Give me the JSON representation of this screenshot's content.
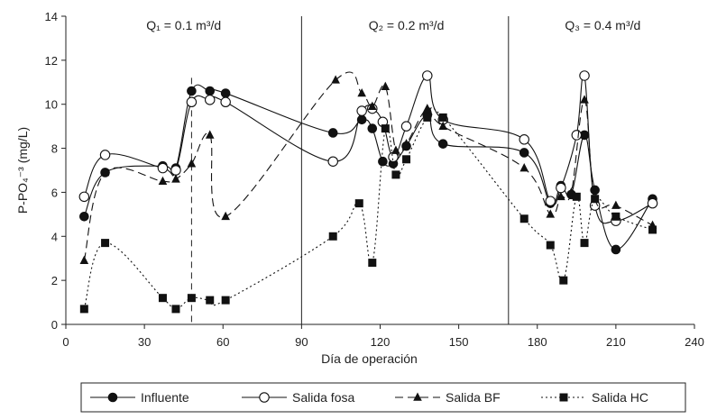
{
  "chart_data": {
    "type": "line",
    "xlabel": "Día de operación",
    "ylabel": "P-PO₄⁻³ (mg/L)",
    "xlim": [
      0,
      240
    ],
    "ylim": [
      0,
      14
    ],
    "xticks": [
      0,
      30,
      60,
      90,
      120,
      150,
      180,
      210,
      240
    ],
    "yticks": [
      0,
      2,
      4,
      6,
      8,
      10,
      12,
      14
    ],
    "grid": false,
    "legend_position": "bottom",
    "period_dividers": [
      90,
      169
    ],
    "dashed_marker_x": 48,
    "periods": [
      {
        "label": "Q₁ = 0.1 m³/d",
        "x_center": 45
      },
      {
        "label": "Q₂ = 0.2 m³/d",
        "x_center": 130
      },
      {
        "label": "Q₃ = 0.4 m³/d",
        "x_center": 205
      }
    ],
    "series": [
      {
        "name": "Influente",
        "line": "solid",
        "marker": "filled-circle",
        "x": [
          7,
          15,
          37,
          42,
          48,
          55,
          61,
          102,
          113,
          117,
          121,
          125,
          130,
          138,
          144,
          175,
          185,
          189,
          193,
          198,
          202,
          210,
          224
        ],
        "y": [
          4.9,
          6.9,
          7.2,
          7.1,
          10.6,
          10.6,
          10.5,
          8.7,
          9.3,
          8.9,
          7.4,
          7.3,
          8.1,
          9.5,
          8.2,
          7.8,
          5.5,
          6.3,
          5.9,
          8.6,
          6.1,
          3.4,
          5.7
        ]
      },
      {
        "name": "Salida fosa",
        "line": "solid",
        "marker": "open-circle",
        "x": [
          7,
          15,
          37,
          42,
          48,
          55,
          61,
          102,
          113,
          117,
          121,
          125,
          130,
          138,
          144,
          175,
          185,
          189,
          195,
          198,
          202,
          210,
          224
        ],
        "y": [
          5.8,
          7.7,
          7.1,
          7.0,
          10.1,
          10.2,
          10.1,
          7.4,
          9.7,
          9.8,
          9.2,
          7.6,
          9.0,
          11.3,
          9.3,
          8.4,
          5.6,
          6.2,
          8.6,
          11.3,
          5.4,
          4.7,
          5.5
        ]
      },
      {
        "name": "Salida BF",
        "line": "dashed",
        "marker": "filled-triangle",
        "x": [
          7,
          15,
          37,
          42,
          48,
          55,
          61,
          103,
          113,
          117,
          122,
          126,
          130,
          138,
          144,
          175,
          185,
          189,
          193,
          198,
          202,
          210,
          224
        ],
        "y": [
          2.9,
          6.9,
          6.5,
          6.6,
          7.3,
          8.6,
          4.9,
          11.1,
          10.5,
          9.9,
          10.8,
          7.9,
          8.2,
          9.8,
          9.0,
          7.1,
          5.0,
          5.8,
          6.0,
          10.2,
          5.7,
          5.4,
          4.5
        ]
      },
      {
        "name": "Salida HC",
        "line": "dotted",
        "marker": "filled-square",
        "x": [
          7,
          15,
          37,
          42,
          48,
          55,
          61,
          102,
          112,
          117,
          122,
          126,
          130,
          138,
          144,
          175,
          185,
          190,
          195,
          198,
          202,
          210,
          224
        ],
        "y": [
          0.7,
          3.7,
          1.2,
          0.7,
          1.2,
          1.1,
          1.1,
          4.0,
          5.5,
          2.8,
          8.9,
          6.8,
          7.5,
          9.4,
          9.4,
          4.8,
          3.6,
          2.0,
          5.8,
          3.7,
          5.7,
          4.9,
          4.3
        ]
      }
    ]
  }
}
